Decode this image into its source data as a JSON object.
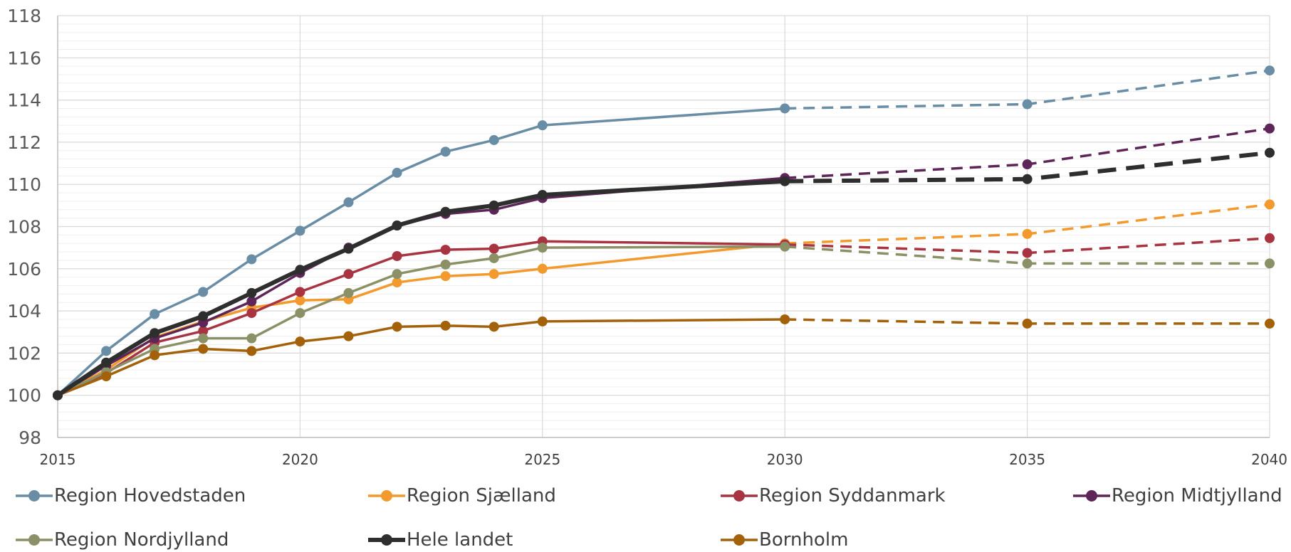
{
  "chart_data": {
    "type": "line",
    "title": "",
    "xlabel": "",
    "ylabel": "",
    "xlim": [
      2015,
      2040
    ],
    "ylim": [
      98,
      118
    ],
    "x_ticks": [
      2015,
      2020,
      2025,
      2030,
      2035,
      2040
    ],
    "y_ticks": [
      98,
      100,
      102,
      104,
      106,
      108,
      110,
      112,
      114,
      116,
      118
    ],
    "grid": true,
    "legend_position": "bottom",
    "solid_until": 2030,
    "x": [
      2015,
      2016,
      2017,
      2018,
      2019,
      2020,
      2021,
      2022,
      2023,
      2024,
      2025,
      2030,
      2035,
      2040
    ],
    "series": [
      {
        "name": "Region Hovedstaden",
        "color": "#6A8DA6",
        "bold": false,
        "values": [
          100,
          102.1,
          103.85,
          104.9,
          106.45,
          107.8,
          109.15,
          110.55,
          111.55,
          112.1,
          112.8,
          113.6,
          113.8,
          115.4
        ]
      },
      {
        "name": "Region Sjælland",
        "color": "#F39A2E",
        "bold": false,
        "values": [
          100,
          101.2,
          102.75,
          103.5,
          104.15,
          104.5,
          104.55,
          105.35,
          105.65,
          105.75,
          106.0,
          107.2,
          107.65,
          109.05
        ]
      },
      {
        "name": "Region Syddanmark",
        "color": "#A83442",
        "bold": false,
        "values": [
          100,
          101.05,
          102.5,
          103.05,
          103.9,
          104.9,
          105.75,
          106.6,
          106.9,
          106.95,
          107.3,
          107.15,
          106.75,
          107.45
        ]
      },
      {
        "name": "Region Midtjylland",
        "color": "#5E2558",
        "bold": false,
        "values": [
          100,
          101.4,
          102.7,
          103.45,
          104.45,
          105.8,
          107.0,
          108.05,
          108.6,
          108.8,
          109.35,
          110.3,
          110.95,
          112.65
        ]
      },
      {
        "name": "Region Nordjylland",
        "color": "#8C9067",
        "bold": false,
        "values": [
          100,
          101.1,
          102.2,
          102.7,
          102.7,
          103.9,
          104.85,
          105.75,
          106.2,
          106.5,
          107.0,
          107.05,
          106.25,
          106.25
        ]
      },
      {
        "name": "Hele landet",
        "color": "#2E2E2E",
        "bold": true,
        "values": [
          100,
          101.55,
          102.95,
          103.75,
          104.85,
          105.95,
          106.95,
          108.05,
          108.7,
          109.0,
          109.5,
          110.15,
          110.25,
          111.5
        ]
      },
      {
        "name": "Bornholm",
        "color": "#A3620A",
        "bold": false,
        "values": [
          100,
          100.9,
          101.9,
          102.2,
          102.1,
          102.55,
          102.8,
          103.25,
          103.3,
          103.25,
          103.5,
          103.6,
          103.4,
          103.4
        ]
      }
    ]
  }
}
